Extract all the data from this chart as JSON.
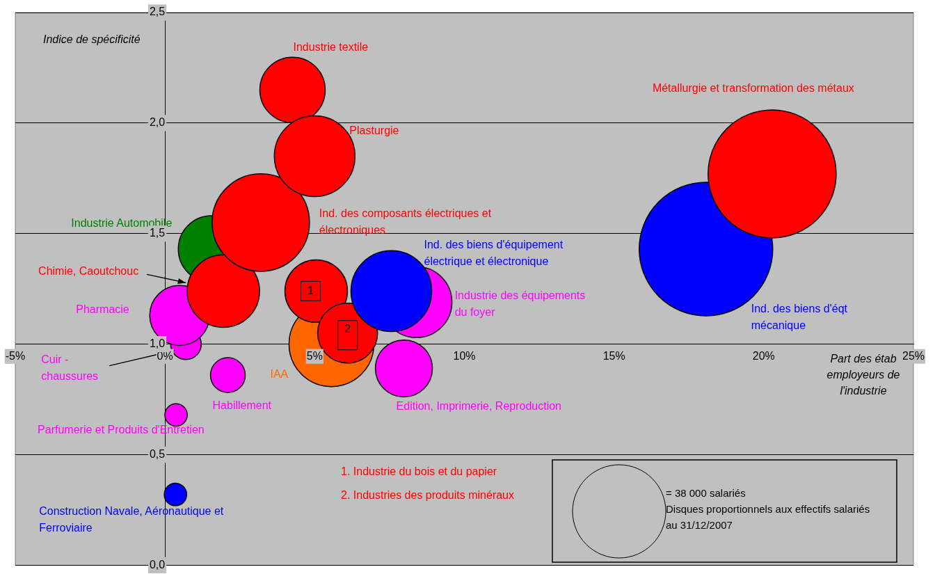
{
  "chart_data": {
    "type": "bubble",
    "xlabel": "Part des étab employeurs de l'industrie",
    "ylabel": "Indice de spécificité",
    "xlim": [
      -5,
      25
    ],
    "xticks": [
      {
        "value": -5,
        "label": "-5%"
      },
      {
        "value": 0,
        "label": "0%"
      },
      {
        "value": 5,
        "label": "5%"
      },
      {
        "value": 10,
        "label": "10%"
      },
      {
        "value": 15,
        "label": "15%"
      },
      {
        "value": 20,
        "label": "20%"
      },
      {
        "value": 25,
        "label": "25%"
      }
    ],
    "ylim": [
      0,
      2.5
    ],
    "yticks": [
      {
        "value": 0,
        "label": "0,0"
      },
      {
        "value": 0.5,
        "label": "0,5"
      },
      {
        "value": 1,
        "label": "1,0"
      },
      {
        "value": 1.5,
        "label": "1,5"
      },
      {
        "value": 2,
        "label": "2,0"
      },
      {
        "value": 2.5,
        "label": "2,5"
      }
    ],
    "grid": "y",
    "legend": false,
    "size_legend": [
      {
        "value": 38000,
        "label": "= 38 000 salariés"
      }
    ],
    "series": [
      {
        "name": "Construction Navale, Aéronautique et Ferroviaire",
        "color": "#0000ff",
        "x": [
          0.35
        ],
        "values": [
          0.32
        ],
        "sizes": [
          2200
        ]
      },
      {
        "name": "Parfumerie et Produits d'Entretien",
        "color": "#ff00ff",
        "x": [
          0.37
        ],
        "values": [
          0.68
        ],
        "sizes": [
          2200
        ]
      },
      {
        "name": "Habillement",
        "color": "#ff00ff",
        "x": [
          2.1
        ],
        "values": [
          0.86
        ],
        "sizes": [
          5300
        ]
      },
      {
        "name": "Cuir - chaussures",
        "color": "#ff00ff",
        "x": [
          0.7
        ],
        "values": [
          1.0
        ],
        "sizes": [
          4100
        ]
      },
      {
        "name": "Pharmacie",
        "color": "#ff00ff",
        "x": [
          0.49
        ],
        "values": [
          1.13
        ],
        "sizes": [
          15700
        ]
      },
      {
        "name": "Industrie Automobile",
        "color": "#008000",
        "x": [
          1.56
        ],
        "values": [
          1.43
        ],
        "sizes": [
          19500
        ]
      },
      {
        "name": "Chimie, Caoutchouc",
        "color": "#ff0000",
        "x": [
          1.95
        ],
        "values": [
          1.24
        ],
        "sizes": [
          22900
        ]
      },
      {
        "name": "Ind. des composants électriques et électroniques",
        "color": "#ff0000",
        "x": [
          3.2
        ],
        "values": [
          1.55
        ],
        "sizes": [
          41500
        ]
      },
      {
        "name": "Industrie textile",
        "color": "#ff0000",
        "x": [
          4.26
        ],
        "values": [
          2.15
        ],
        "sizes": [
          18700
        ]
      },
      {
        "name": "Plasturgie",
        "color": "#ff0000",
        "x": [
          5.0
        ],
        "values": [
          1.85
        ],
        "sizes": [
          28500
        ]
      },
      {
        "name": "IAA",
        "color": "#ff6600",
        "x": [
          5.56
        ],
        "values": [
          1.0
        ],
        "sizes": [
          31500
        ]
      },
      {
        "name": "1",
        "color": "#ff0000",
        "x": [
          5.05
        ],
        "values": [
          1.24
        ],
        "sizes": [
          17100
        ]
      },
      {
        "name": "2",
        "color": "#ff0000",
        "x": [
          6.1
        ],
        "values": [
          1.05
        ],
        "sizes": [
          15700
        ]
      },
      {
        "name": "Industrie des équipements du foyer",
        "color": "#ff00ff",
        "x": [
          8.4
        ],
        "values": [
          1.19
        ],
        "sizes": [
          22000
        ]
      },
      {
        "name": "Ind. des biens d'équipement électrique et électronique",
        "color": "#0000ff",
        "x": [
          7.56
        ],
        "values": [
          1.24
        ],
        "sizes": [
          28500
        ]
      },
      {
        "name": "Edition, Imprimerie, Reproduction",
        "color": "#ff00ff",
        "x": [
          7.98
        ],
        "values": [
          0.89
        ],
        "sizes": [
          14200
        ]
      },
      {
        "name": "Ind. des biens d'éqt mécanique",
        "color": "#0000ff",
        "x": [
          18.07
        ],
        "values": [
          1.43
        ],
        "sizes": [
          78000
        ]
      },
      {
        "name": "Métallurgie et transformation des métaux",
        "color": "#ff0000",
        "x": [
          20.28
        ],
        "values": [
          1.77
        ],
        "sizes": [
          71700
        ]
      }
    ],
    "annotations": [
      "1. Industrie du bois et du papier",
      "2. Industries des produits minéraux",
      "Disques proportionnels aux effectifs salariés au 31/12/2007"
    ]
  }
}
